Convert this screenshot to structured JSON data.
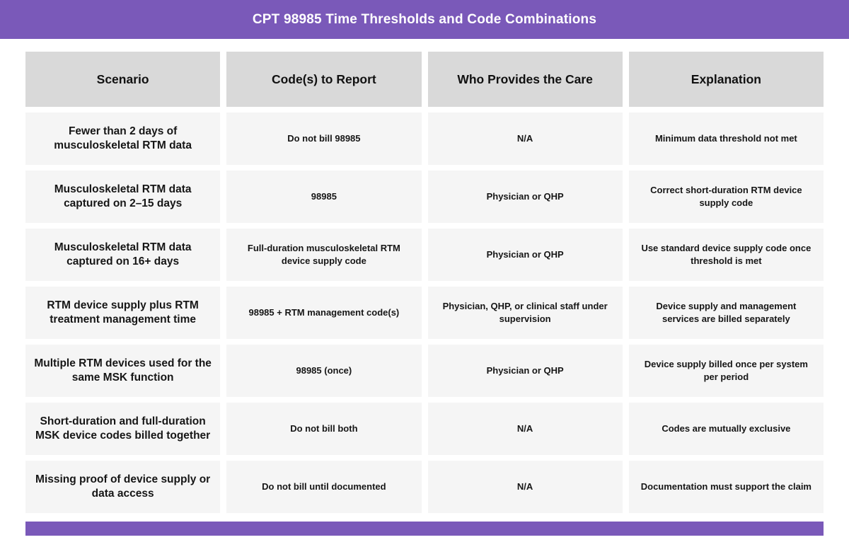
{
  "title": "CPT 98985 Time Thresholds and Code Combinations",
  "theme": {
    "header_purple": "#7A59B9",
    "header_cell_bg": "#D9D9D9",
    "body_cell_bg": "#F5F5F5",
    "text_color": "#151515"
  },
  "table": {
    "columns": [
      "Scenario",
      "Code(s) to Report",
      "Who Provides the Care",
      "Explanation"
    ],
    "rows": [
      {
        "scenario": "Fewer than 2 days of musculoskeletal RTM data",
        "codes": "Do not bill 98985",
        "provider": "N/A",
        "explanation": "Minimum data threshold not met"
      },
      {
        "scenario": "Musculoskeletal RTM data captured on 2–15 days",
        "codes": "98985",
        "provider": "Physician or QHP",
        "explanation": "Correct short-duration RTM device supply code"
      },
      {
        "scenario": "Musculoskeletal RTM data captured on 16+ days",
        "codes": "Full-duration musculoskeletal RTM device supply code",
        "provider": "Physician or QHP",
        "explanation": "Use standard device supply code once threshold is met"
      },
      {
        "scenario": "RTM device supply plus RTM treatment management time",
        "codes": "98985 + RTM management code(s)",
        "provider": "Physician, QHP, or clinical staff under supervision",
        "explanation": "Device supply and management services are billed separately"
      },
      {
        "scenario": "Multiple RTM devices used for the same MSK function",
        "codes": "98985 (once)",
        "provider": "Physician or QHP",
        "explanation": "Device supply billed once per system per period"
      },
      {
        "scenario": "Short-duration and full-duration MSK device codes billed together",
        "codes": "Do not bill both",
        "provider": "N/A",
        "explanation": "Codes are mutually exclusive"
      },
      {
        "scenario": "Missing proof of device supply or data access",
        "codes": "Do not bill until documented",
        "provider": "N/A",
        "explanation": "Documentation must support the claim"
      }
    ]
  }
}
